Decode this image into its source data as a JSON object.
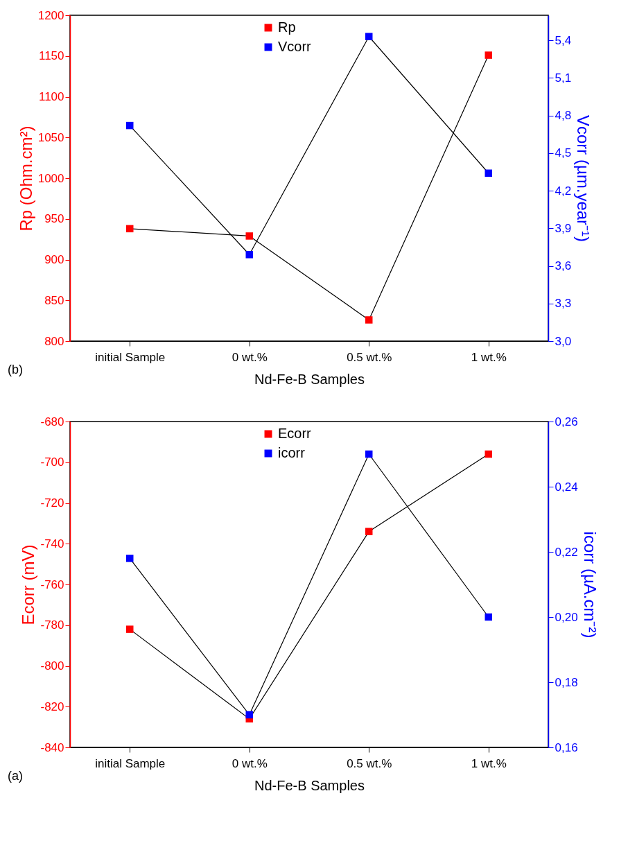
{
  "chart_data": [
    {
      "type": "line",
      "categories": [
        "initial Sample",
        "0 wt.%",
        "0.5 wt.%",
        "1 wt.%"
      ],
      "xlabel": "Nd-Fe-B Samples",
      "ylabel": "Rp (Ohm.cm²)",
      "y2label": "Vcorr (µm.year⁻¹)",
      "legend": "top",
      "marker": "square",
      "annotations": [
        "(b)"
      ],
      "ylim": [
        800,
        1200
      ],
      "yticks": [
        800,
        850,
        900,
        950,
        1000,
        1050,
        1100,
        1150,
        1200
      ],
      "y2lim": [
        3.0,
        5.6
      ],
      "y2ticks": [
        {
          "value": 3.0,
          "label": "3,0"
        },
        {
          "value": 3.3,
          "label": "3,3"
        },
        {
          "value": 3.6,
          "label": "3,6"
        },
        {
          "value": 3.9,
          "label": "3,9"
        },
        {
          "value": 4.2,
          "label": "4,2"
        },
        {
          "value": 4.5,
          "label": "4,5"
        },
        {
          "value": 4.8,
          "label": "4,8"
        },
        {
          "value": 5.1,
          "label": "5,1"
        },
        {
          "value": 5.4,
          "label": "5,4"
        }
      ],
      "series": [
        {
          "name": "Rp",
          "color": "#ff0000",
          "values": [
            938,
            929,
            826,
            1151
          ]
        },
        {
          "name": "Vcorr",
          "color": "#0000ff",
          "axis": "y2",
          "values": [
            4.72,
            3.69,
            5.43,
            4.34
          ]
        }
      ]
    },
    {
      "type": "line",
      "categories": [
        "initial Sample",
        "0 wt.%",
        "0.5 wt.%",
        "1 wt.%"
      ],
      "xlabel": "Nd-Fe-B Samples",
      "ylabel": "Ecorr (mV)",
      "y2label": "icorr (µA.cm⁻²)",
      "legend": "top",
      "marker": "square",
      "annotations": [
        "(a)"
      ],
      "ylim": [
        -840,
        -680
      ],
      "yticks": [
        -840,
        -820,
        -800,
        -780,
        -760,
        -740,
        -720,
        -700,
        -680
      ],
      "y2lim": [
        0.16,
        0.26
      ],
      "y2ticks": [
        {
          "value": 0.16,
          "label": "0,16"
        },
        {
          "value": 0.18,
          "label": "0,18"
        },
        {
          "value": 0.2,
          "label": "0,20"
        },
        {
          "value": 0.22,
          "label": "0,22"
        },
        {
          "value": 0.24,
          "label": "0,24"
        },
        {
          "value": 0.26,
          "label": "0,26"
        }
      ],
      "series": [
        {
          "name": "Ecorr",
          "color": "#ff0000",
          "values": [
            -782,
            -826,
            -734,
            -696
          ]
        },
        {
          "name": "icorr",
          "color": "#0000ff",
          "axis": "y2",
          "values": [
            0.218,
            0.17,
            0.25,
            0.2
          ]
        }
      ]
    }
  ]
}
